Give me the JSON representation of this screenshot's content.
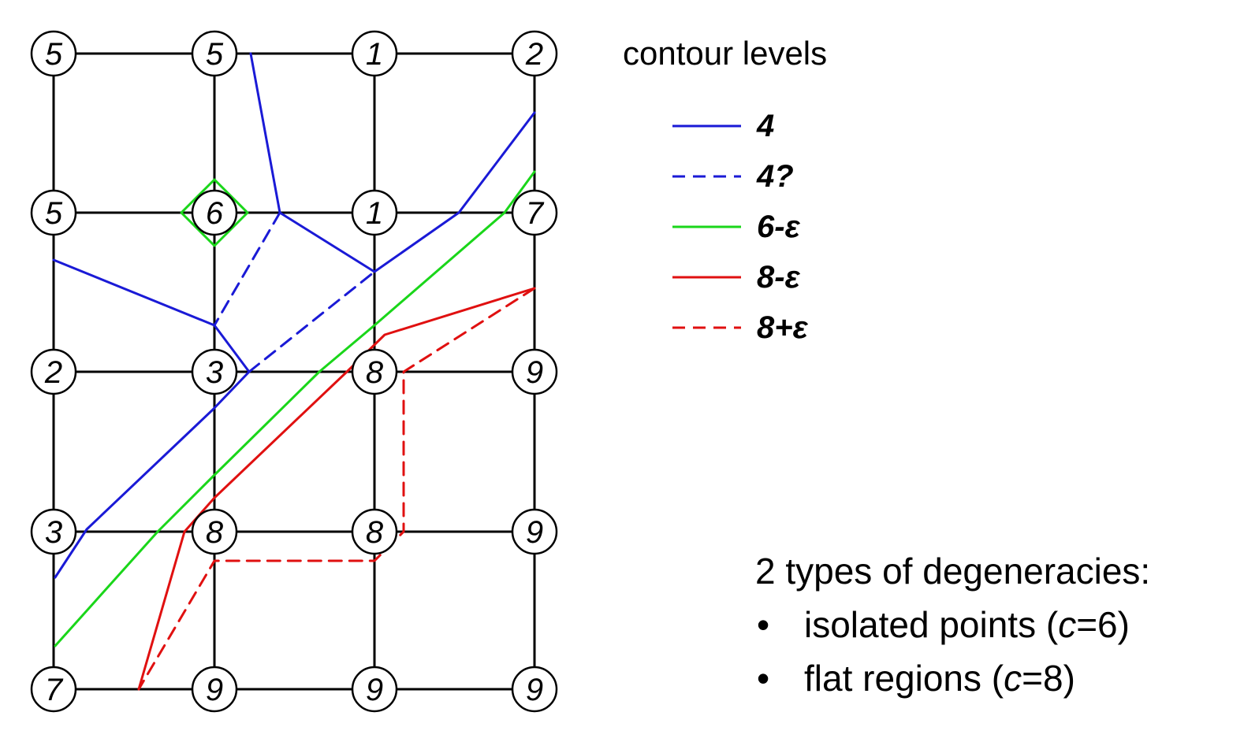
{
  "grid": {
    "rows": [
      [
        "5",
        "5",
        "1",
        "2"
      ],
      [
        "5",
        "6",
        "1",
        "7"
      ],
      [
        "2",
        "3",
        "8",
        "9"
      ],
      [
        "3",
        "8",
        "8",
        "9"
      ],
      [
        "7",
        "9",
        "9",
        "9"
      ]
    ]
  },
  "legend": {
    "title": "contour levels",
    "items": [
      {
        "label": "4",
        "color": "#1a1ad6",
        "dashed": false
      },
      {
        "label": "4?",
        "color": "#1a1ad6",
        "dashed": true
      },
      {
        "label": "6-ε",
        "color": "#1ad61a",
        "dashed": false
      },
      {
        "label": "8-ε",
        "color": "#e01010",
        "dashed": false
      },
      {
        "label": "8+ε",
        "color": "#e01010",
        "dashed": true
      }
    ]
  },
  "notes": {
    "heading": "2 types of degeneracies:",
    "items": [
      {
        "bullet": "•",
        "pre": "isolated points (",
        "var": "c",
        "post": "=6)"
      },
      {
        "bullet": "•",
        "pre": "flat regions (",
        "var": "c",
        "post": "=8)"
      }
    ]
  },
  "colors": {
    "blue": "#1a1ad6",
    "green": "#1ad61a",
    "red": "#e01010",
    "grid": "#000000"
  }
}
